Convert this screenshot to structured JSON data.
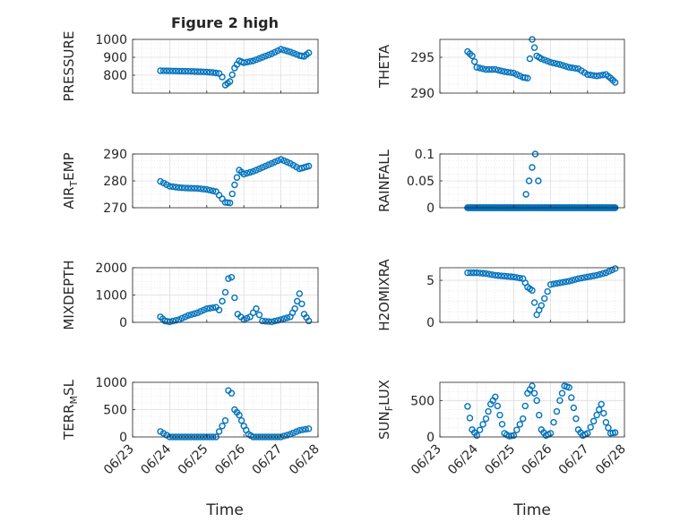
{
  "figure": {
    "title": "Figure 2 high",
    "x_axis_label": "Time",
    "date_ticks": [
      "06/23",
      "06/24",
      "06/25",
      "06/26",
      "06/27",
      "06/28"
    ],
    "marker_color": "#0072BD",
    "marker": "open-circle"
  },
  "chart_data": [
    {
      "type": "scatter",
      "id": "pressure",
      "ylabel": "PRESSURE",
      "ylabel_sub": "",
      "xlim": [
        "06/23",
        "06/28"
      ],
      "ylim": [
        700,
        1000
      ],
      "yticks": [
        800,
        900,
        1000
      ],
      "grid": true,
      "x": [
        "06/23 18:00",
        "06/24 00:00",
        "06/24 06:00",
        "06/24 12:00",
        "06/24 18:00",
        "06/25 00:00",
        "06/25 04:00",
        "06/25 08:00",
        "06/25 10:00",
        "06/25 12:00",
        "06/25 15:00",
        "06/25 18:00",
        "06/25 21:00",
        "06/26 00:00",
        "06/26 06:00",
        "06/26 12:00",
        "06/26 18:00",
        "06/27 00:00",
        "06/27 06:00",
        "06/27 12:00",
        "06/27 15:00",
        "06/27 18:00"
      ],
      "y": [
        825,
        824,
        823,
        822,
        820,
        818,
        815,
        810,
        790,
        745,
        765,
        840,
        880,
        870,
        880,
        900,
        920,
        945,
        930,
        910,
        905,
        925
      ]
    },
    {
      "type": "scatter",
      "id": "theta",
      "ylabel": "THETA",
      "ylabel_sub": "",
      "xlim": [
        "06/23",
        "06/28"
      ],
      "ylim": [
        290,
        297.5
      ],
      "yticks": [
        290,
        295
      ],
      "grid": true,
      "x": [
        "06/23 18:00",
        "06/23 21:00",
        "06/24 00:00",
        "06/24 06:00",
        "06/24 12:00",
        "06/24 18:00",
        "06/25 00:00",
        "06/25 06:00",
        "06/25 09:00",
        "06/25 12:00",
        "06/25 15:00",
        "06/25 18:00",
        "06/26 00:00",
        "06/26 06:00",
        "06/26 12:00",
        "06/26 18:00",
        "06/27 00:00",
        "06/27 06:00",
        "06/27 12:00",
        "06/27 15:00",
        "06/27 18:00"
      ],
      "y": [
        295.8,
        295.2,
        293.6,
        293.3,
        293.3,
        293.0,
        292.8,
        292.2,
        292.1,
        297.5,
        295.2,
        294.8,
        294.3,
        294.0,
        293.6,
        293.4,
        292.6,
        292.4,
        292.6,
        292.1,
        291.5
      ]
    },
    {
      "type": "scatter",
      "id": "air_temp",
      "ylabel": "AIR",
      "ylabel_sub": "T",
      "ylabel_suffix": "EMP",
      "xlim": [
        "06/23",
        "06/28"
      ],
      "ylim": [
        270,
        290
      ],
      "yticks": [
        270,
        280,
        290
      ],
      "grid": true,
      "x": [
        "06/23 18:00",
        "06/24 00:00",
        "06/24 06:00",
        "06/24 12:00",
        "06/24 18:00",
        "06/25 00:00",
        "06/25 06:00",
        "06/25 12:00",
        "06/25 15:00",
        "06/25 18:00",
        "06/25 21:00",
        "06/26 00:00",
        "06/26 06:00",
        "06/26 12:00",
        "06/26 18:00",
        "06/27 00:00",
        "06/27 06:00",
        "06/27 12:00",
        "06/27 15:00",
        "06/27 18:00"
      ],
      "y": [
        279.8,
        278.0,
        277.5,
        277.3,
        277.2,
        276.8,
        276.0,
        272.0,
        271.8,
        278.5,
        284.0,
        282.5,
        283.5,
        285.0,
        286.5,
        288.0,
        286.5,
        284.5,
        285.0,
        285.5
      ]
    },
    {
      "type": "scatter",
      "id": "rainfall",
      "ylabel": "RAINFALL",
      "ylabel_sub": "",
      "xlim": [
        "06/23",
        "06/28"
      ],
      "ylim": [
        0,
        0.1
      ],
      "yticks": [
        0,
        0.05,
        0.1
      ],
      "ytick_labels": [
        "0",
        "0.05",
        "0.1"
      ],
      "grid": true,
      "x": [
        "06/23 18:00",
        "06/24 06:00",
        "06/24 18:00",
        "06/25 06:00",
        "06/25 14:00",
        "06/25 18:00",
        "06/26 06:00",
        "06/26 18:00",
        "06/27 06:00",
        "06/27 18:00"
      ],
      "y": [
        0,
        0,
        0,
        0,
        0.1,
        0,
        0,
        0,
        0,
        0
      ],
      "dense_baseline": {
        "from": "06/23 18:00",
        "to": "06/27 18:00",
        "value": 0
      }
    },
    {
      "type": "scatter",
      "id": "mixdepth",
      "ylabel": "MIXDEPTH",
      "ylabel_sub": "",
      "xlim": [
        "06/23",
        "06/28"
      ],
      "ylim": [
        0,
        2000
      ],
      "yticks": [
        0,
        1000,
        2000
      ],
      "grid": true,
      "x": [
        "06/23 18:00",
        "06/23 21:00",
        "06/24 00:00",
        "06/24 06:00",
        "06/24 12:00",
        "06/24 18:00",
        "06/25 00:00",
        "06/25 06:00",
        "06/25 08:00",
        "06/25 12:00",
        "06/25 14:00",
        "06/25 16:00",
        "06/25 18:00",
        "06/25 20:00",
        "06/26 00:00",
        "06/26 04:00",
        "06/26 08:00",
        "06/26 12:00",
        "06/26 18:00",
        "06/27 00:00",
        "06/27 06:00",
        "06/27 09:00",
        "06/27 12:00",
        "06/27 15:00",
        "06/27 18:00"
      ],
      "y": [
        200,
        50,
        20,
        100,
        250,
        350,
        500,
        550,
        450,
        1100,
        1600,
        1650,
        900,
        300,
        100,
        200,
        500,
        50,
        20,
        100,
        200,
        500,
        1050,
        300,
        50
      ]
    },
    {
      "type": "scatter",
      "id": "h2omixra",
      "ylabel": "H2OMIXRA",
      "ylabel_sub": "",
      "xlim": [
        "06/23",
        "06/28"
      ],
      "ylim": [
        0,
        6.5
      ],
      "yticks": [
        0,
        5
      ],
      "grid": true,
      "x": [
        "06/23 18:00",
        "06/24 00:00",
        "06/24 06:00",
        "06/24 12:00",
        "06/24 18:00",
        "06/25 00:00",
        "06/25 06:00",
        "06/25 09:00",
        "06/25 12:00",
        "06/25 15:00",
        "06/25 18:00",
        "06/26 00:00",
        "06/26 06:00",
        "06/26 12:00",
        "06/26 18:00",
        "06/27 00:00",
        "06/27 06:00",
        "06/27 12:00",
        "06/27 18:00"
      ],
      "y": [
        5.9,
        5.9,
        5.8,
        5.6,
        5.5,
        5.4,
        5.2,
        4.2,
        3.8,
        0.9,
        2.0,
        4.5,
        4.7,
        4.9,
        5.2,
        5.4,
        5.6,
        5.9,
        6.4
      ]
    },
    {
      "type": "scatter",
      "id": "terr_msl",
      "ylabel": "TERR",
      "ylabel_sub": "M",
      "ylabel_suffix": "SL",
      "xlim": [
        "06/23",
        "06/28"
      ],
      "ylim": [
        0,
        1000
      ],
      "yticks": [
        0,
        500,
        1000
      ],
      "grid": true,
      "x": [
        "06/23 18:00",
        "06/24 00:00",
        "06/24 12:00",
        "06/25 00:00",
        "06/25 06:00",
        "06/25 12:00",
        "06/25 14:00",
        "06/25 16:00",
        "06/25 18:00",
        "06/25 21:00",
        "06/26 00:00",
        "06/26 03:00",
        "06/26 06:00",
        "06/26 12:00",
        "06/26 18:00",
        "06/27 00:00",
        "06/27 06:00",
        "06/27 12:00",
        "06/27 18:00"
      ],
      "y": [
        100,
        0,
        0,
        0,
        0,
        300,
        850,
        800,
        500,
        400,
        200,
        50,
        0,
        0,
        0,
        0,
        50,
        120,
        150
      ]
    },
    {
      "type": "scatter",
      "id": "sun_flux",
      "ylabel": "SUN",
      "ylabel_sub": "F",
      "ylabel_suffix": "LUX",
      "xlim": [
        "06/23",
        "06/28"
      ],
      "ylim": [
        0,
        750
      ],
      "yticks": [
        0,
        500
      ],
      "grid": true,
      "x": [
        "06/23 18:00",
        "06/23 21:00",
        "06/24 00:00",
        "06/24 06:00",
        "06/24 09:00",
        "06/24 12:00",
        "06/24 15:00",
        "06/24 18:00",
        "06/24 21:00",
        "06/25 00:00",
        "06/25 06:00",
        "06/25 09:00",
        "06/25 12:00",
        "06/25 15:00",
        "06/25 18:00",
        "06/25 21:00",
        "06/26 00:00",
        "06/26 06:00",
        "06/26 09:00",
        "06/26 12:00",
        "06/26 15:00",
        "06/26 18:00",
        "06/26 21:00",
        "06/27 00:00",
        "06/27 06:00",
        "06/27 09:00",
        "06/27 12:00",
        "06/27 15:00",
        "06/27 18:00"
      ],
      "y": [
        420,
        100,
        20,
        250,
        450,
        550,
        300,
        50,
        10,
        20,
        250,
        600,
        700,
        500,
        100,
        20,
        50,
        500,
        700,
        680,
        400,
        100,
        20,
        50,
        300,
        450,
        200,
        50,
        60
      ]
    }
  ]
}
